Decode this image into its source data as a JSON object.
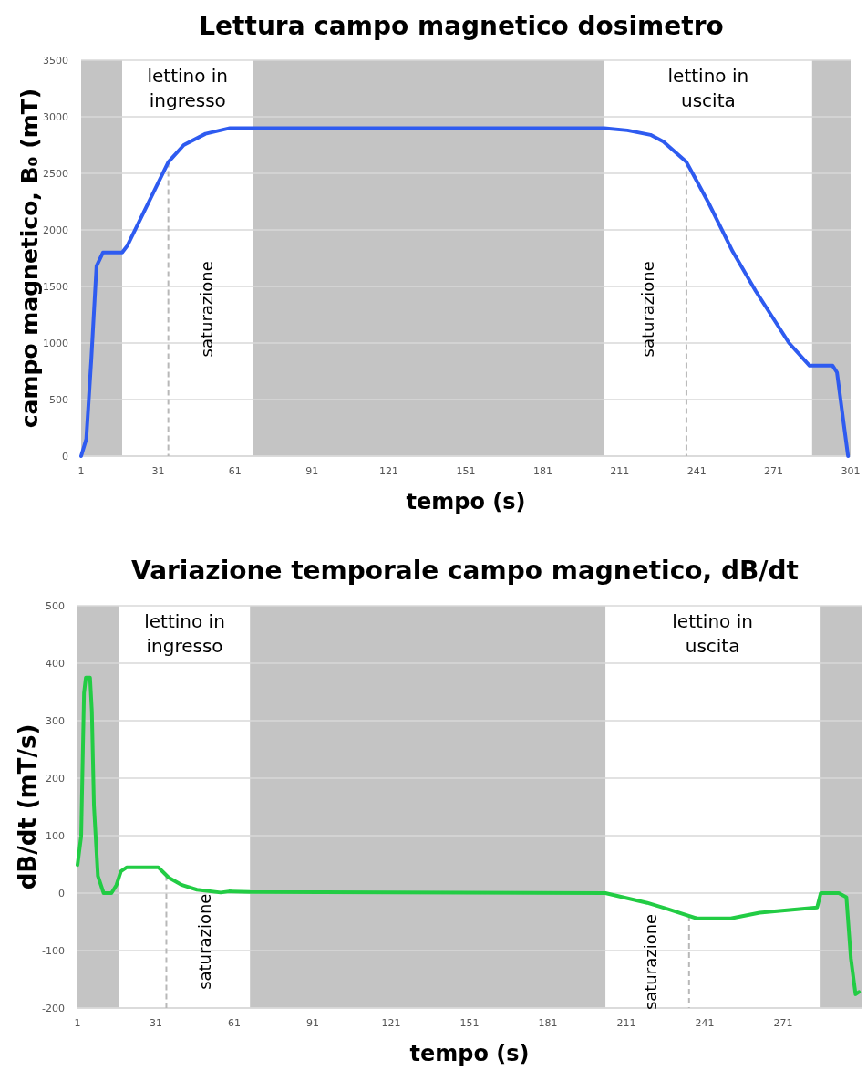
{
  "chart_data": [
    {
      "type": "line",
      "title": "Lettura campo magnetico dosimetro",
      "xlabel": "tempo (s)",
      "ylabel": "campo magnetico, B₀ (mT)",
      "xlim": [
        1,
        301
      ],
      "xticks": [
        1,
        31,
        61,
        91,
        121,
        151,
        181,
        211,
        241,
        271,
        301
      ],
      "ylim": [
        0,
        3500
      ],
      "yticks": [
        0,
        500,
        1000,
        1500,
        2000,
        2500,
        3000,
        3500
      ],
      "grid": "y",
      "marker": "none",
      "line_style": "solid",
      "series": [
        {
          "color": "#2e5bf0",
          "x": [
            1,
            3,
            5,
            7,
            9.5,
            17,
            19,
            35,
            41,
            49.5,
            59,
            68,
            205,
            214,
            223,
            228,
            237,
            245.6,
            255,
            264,
            277,
            285,
            294,
            295.7,
            298,
            300
          ],
          "values": [
            0,
            150,
            870,
            1680,
            1800,
            1800,
            1860,
            2600,
            2750,
            2850,
            2900,
            2900,
            2900,
            2880,
            2840,
            2780,
            2600,
            2240,
            1810,
            1460,
            1000,
            800,
            800,
            740,
            340,
            0
          ]
        }
      ],
      "bands": [
        {
          "axis": "x",
          "from": 1,
          "to": 17,
          "color": "#c4c4c4"
        },
        {
          "axis": "x",
          "from": 68,
          "to": 205,
          "color": "#c4c4c4"
        },
        {
          "axis": "x",
          "from": 286,
          "to": 301,
          "color": "#c4c4c4"
        }
      ],
      "ref_lines": [
        {
          "axis": "x",
          "value": 35,
          "label": "saturazione",
          "color": "#b8b8b8",
          "line_style": "dashed"
        },
        {
          "axis": "x",
          "value": 237,
          "label": "saturazione",
          "color": "#b8b8b8",
          "line_style": "dashed"
        }
      ],
      "annotations": [
        "lettino in ingresso",
        "lettino in uscita"
      ]
    },
    {
      "type": "line",
      "title": "Variazione temporale campo magnetico, dB/dt",
      "xlabel": "tempo (s)",
      "ylabel": "dB/dt (mT/s)",
      "xlim": [
        1,
        301
      ],
      "xticks": [
        1,
        31,
        61,
        91,
        121,
        151,
        181,
        211,
        241,
        271
      ],
      "ylim": [
        -200,
        500
      ],
      "yticks": [
        -200,
        -100,
        0,
        100,
        200,
        300,
        400,
        500
      ],
      "grid": "y",
      "marker": "none",
      "line_style": "solid",
      "series": [
        {
          "color": "#22cc44",
          "x": [
            1,
            2.4,
            3.5,
            4.2,
            5.8,
            6.5,
            7.3,
            8.8,
            11,
            14,
            15.9,
            17.6,
            19.9,
            31.9,
            35.9,
            41,
            46.7,
            55.8,
            59,
            67,
            203,
            219,
            227,
            238,
            251,
            262,
            284,
            285.4,
            292.3,
            295.2,
            296.9,
            298.7,
            300
          ],
          "values": [
            49,
            99,
            348,
            375,
            375,
            316,
            152,
            30,
            0,
            0,
            14,
            38,
            45,
            45,
            27,
            14,
            6,
            1,
            3,
            2,
            0,
            -17,
            -28,
            -44,
            -44,
            -34,
            -25,
            0,
            0,
            -7,
            -113,
            -176,
            -172
          ]
        }
      ],
      "bands": [
        {
          "axis": "x",
          "from": 1,
          "to": 17,
          "color": "#c4c4c4"
        },
        {
          "axis": "x",
          "from": 67,
          "to": 203,
          "color": "#c4c4c4"
        },
        {
          "axis": "x",
          "from": 285,
          "to": 301,
          "color": "#c4c4c4"
        }
      ],
      "ref_lines": [
        {
          "axis": "x",
          "value": 35,
          "label": "saturazione",
          "color": "#b8b8b8",
          "line_style": "dashed"
        },
        {
          "axis": "x",
          "value": 235,
          "label": "saturazione",
          "color": "#b8b8b8",
          "line_style": "dashed"
        }
      ],
      "annotations": [
        "lettino in ingresso",
        "lettino in uscita"
      ]
    }
  ]
}
